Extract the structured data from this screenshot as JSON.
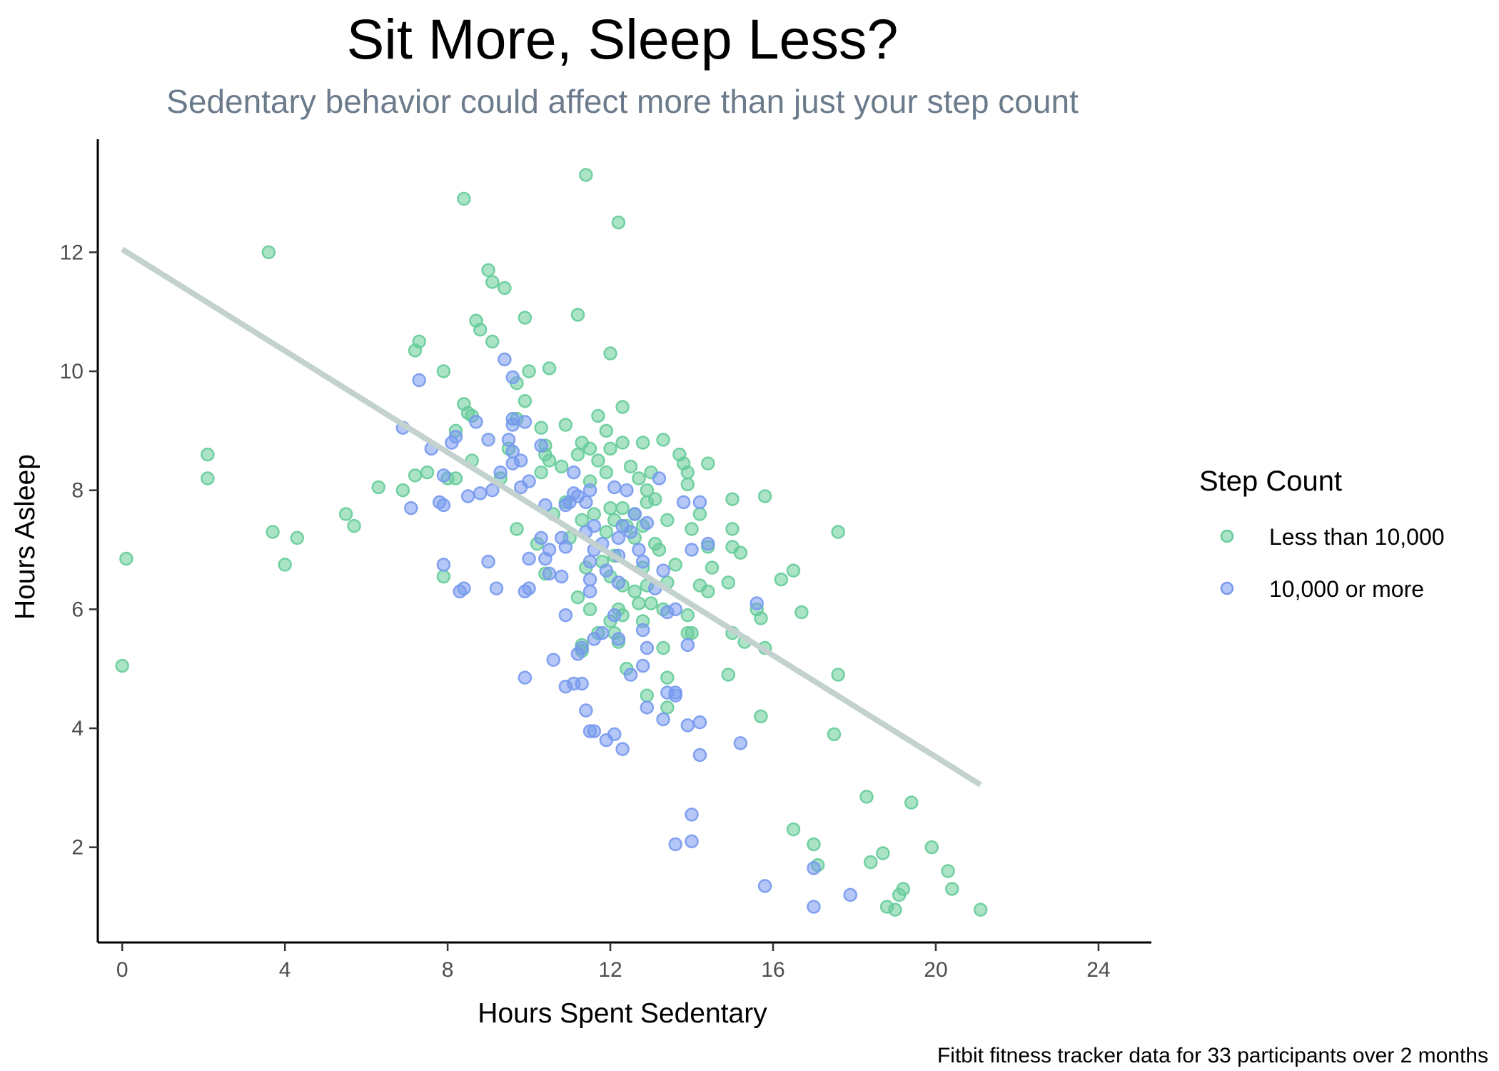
{
  "chart_data": {
    "type": "scatter",
    "title": "Sit More, Sleep Less?",
    "subtitle": "Sedentary behavior could affect more than just your step count",
    "xlabel": "Hours Spent Sedentary",
    "ylabel": "Hours Asleep",
    "caption": "Fitbit fitness tracker data for 33 participants over 2 months",
    "xlim": [
      -0.6,
      25.3
    ],
    "ylim": [
      0.4,
      13.9
    ],
    "x_ticks": [
      0,
      4,
      8,
      12,
      16,
      20,
      24
    ],
    "y_ticks": [
      2,
      4,
      6,
      8,
      10,
      12
    ],
    "x_tick_labels": [
      "0",
      "4",
      "8",
      "12",
      "16",
      "20",
      "24"
    ],
    "y_tick_labels": [
      "2",
      "4",
      "6",
      "8",
      "10",
      "12"
    ],
    "grid": false,
    "legend": {
      "title": "Step Count",
      "position": "right"
    },
    "trend_line": {
      "x": [
        0,
        21.1
      ],
      "y": [
        12.05,
        3.05
      ],
      "color": "#c3d1cf"
    },
    "series": [
      {
        "name": "Less than 10,000",
        "color": "#66cc99",
        "points": [
          [
            11.4,
            13.3
          ],
          [
            8.4,
            12.9
          ],
          [
            12.2,
            12.5
          ],
          [
            3.6,
            12.0
          ],
          [
            9.0,
            11.7
          ],
          [
            9.1,
            11.5
          ],
          [
            9.4,
            11.4
          ],
          [
            9.9,
            10.9
          ],
          [
            11.2,
            10.95
          ],
          [
            8.7,
            10.85
          ],
          [
            8.8,
            10.7
          ],
          [
            7.3,
            10.5
          ],
          [
            7.2,
            10.35
          ],
          [
            9.1,
            10.5
          ],
          [
            12.0,
            10.3
          ],
          [
            10.5,
            10.05
          ],
          [
            10.0,
            10.0
          ],
          [
            7.9,
            10.0
          ],
          [
            9.7,
            9.8
          ],
          [
            9.9,
            9.5
          ],
          [
            8.4,
            9.45
          ],
          [
            12.3,
            9.4
          ],
          [
            8.5,
            9.3
          ],
          [
            8.6,
            9.25
          ],
          [
            9.7,
            9.2
          ],
          [
            11.7,
            9.25
          ],
          [
            10.9,
            9.1
          ],
          [
            10.3,
            9.05
          ],
          [
            11.9,
            9.0
          ],
          [
            8.2,
            9.0
          ],
          [
            13.3,
            8.85
          ],
          [
            11.3,
            8.8
          ],
          [
            12.3,
            8.8
          ],
          [
            12.8,
            8.8
          ],
          [
            10.4,
            8.75
          ],
          [
            9.5,
            8.7
          ],
          [
            11.5,
            8.7
          ],
          [
            12.0,
            8.7
          ],
          [
            10.4,
            8.6
          ],
          [
            11.2,
            8.6
          ],
          [
            13.7,
            8.6
          ],
          [
            8.6,
            8.5
          ],
          [
            10.5,
            8.5
          ],
          [
            11.7,
            8.5
          ],
          [
            13.8,
            8.45
          ],
          [
            14.4,
            8.45
          ],
          [
            10.8,
            8.4
          ],
          [
            12.5,
            8.4
          ],
          [
            7.5,
            8.3
          ],
          [
            7.2,
            8.25
          ],
          [
            8.2,
            8.2
          ],
          [
            13.0,
            8.3
          ],
          [
            11.9,
            8.3
          ],
          [
            10.3,
            8.3
          ],
          [
            13.9,
            8.3
          ],
          [
            8.0,
            8.2
          ],
          [
            9.3,
            8.2
          ],
          [
            12.7,
            8.2
          ],
          [
            11.5,
            8.15
          ],
          [
            13.9,
            8.1
          ],
          [
            6.3,
            8.05
          ],
          [
            6.9,
            8.0
          ],
          [
            12.9,
            8.0
          ],
          [
            15.0,
            7.85
          ],
          [
            15.8,
            7.9
          ],
          [
            10.9,
            7.8
          ],
          [
            12.9,
            7.8
          ],
          [
            12.0,
            7.7
          ],
          [
            12.3,
            7.7
          ],
          [
            13.1,
            7.85
          ],
          [
            11.6,
            7.6
          ],
          [
            5.5,
            7.6
          ],
          [
            10.6,
            7.6
          ],
          [
            12.6,
            7.6
          ],
          [
            14.2,
            7.6
          ],
          [
            11.3,
            7.5
          ],
          [
            12.1,
            7.5
          ],
          [
            13.4,
            7.5
          ],
          [
            12.8,
            7.4
          ],
          [
            5.7,
            7.4
          ],
          [
            9.7,
            7.35
          ],
          [
            12.4,
            7.4
          ],
          [
            14.0,
            7.35
          ],
          [
            11.9,
            7.3
          ],
          [
            15.0,
            7.35
          ],
          [
            17.6,
            7.3
          ],
          [
            3.7,
            7.3
          ],
          [
            4.3,
            7.2
          ],
          [
            11.0,
            7.2
          ],
          [
            12.6,
            7.2
          ],
          [
            10.2,
            7.1
          ],
          [
            13.1,
            7.1
          ],
          [
            14.4,
            7.05
          ],
          [
            15.0,
            7.05
          ],
          [
            13.2,
            7.0
          ],
          [
            12.1,
            6.9
          ],
          [
            15.2,
            6.95
          ],
          [
            13.6,
            6.75
          ],
          [
            12.8,
            6.7
          ],
          [
            11.8,
            6.8
          ],
          [
            4.0,
            6.75
          ],
          [
            0.1,
            6.85
          ],
          [
            14.5,
            6.7
          ],
          [
            11.4,
            6.7
          ],
          [
            16.5,
            6.65
          ],
          [
            16.2,
            6.5
          ],
          [
            10.4,
            6.6
          ],
          [
            12.0,
            6.55
          ],
          [
            12.9,
            6.4
          ],
          [
            13.4,
            6.45
          ],
          [
            14.2,
            6.4
          ],
          [
            14.9,
            6.45
          ],
          [
            7.9,
            6.55
          ],
          [
            12.3,
            6.4
          ],
          [
            12.6,
            6.3
          ],
          [
            11.2,
            6.2
          ],
          [
            14.4,
            6.3
          ],
          [
            12.7,
            6.1
          ],
          [
            13.0,
            6.1
          ],
          [
            12.2,
            6.0
          ],
          [
            11.5,
            6.0
          ],
          [
            15.6,
            6.0
          ],
          [
            16.7,
            5.95
          ],
          [
            13.3,
            6.0
          ],
          [
            13.9,
            5.9
          ],
          [
            12.0,
            5.8
          ],
          [
            12.3,
            5.9
          ],
          [
            12.8,
            5.8
          ],
          [
            15.7,
            5.85
          ],
          [
            11.7,
            5.6
          ],
          [
            12.1,
            5.6
          ],
          [
            13.9,
            5.6
          ],
          [
            15.0,
            5.6
          ],
          [
            12.2,
            5.45
          ],
          [
            11.3,
            5.4
          ],
          [
            15.3,
            5.45
          ],
          [
            15.8,
            5.35
          ],
          [
            13.3,
            5.35
          ],
          [
            14.0,
            5.6
          ],
          [
            11.3,
            5.3
          ],
          [
            12.4,
            5.0
          ],
          [
            13.4,
            4.85
          ],
          [
            14.9,
            4.9
          ],
          [
            17.6,
            4.9
          ],
          [
            12.9,
            4.55
          ],
          [
            13.4,
            4.35
          ],
          [
            15.7,
            4.2
          ],
          [
            17.5,
            3.9
          ],
          [
            18.3,
            2.85
          ],
          [
            19.4,
            2.75
          ],
          [
            16.5,
            2.3
          ],
          [
            17.0,
            2.05
          ],
          [
            19.9,
            2.0
          ],
          [
            18.7,
            1.9
          ],
          [
            18.4,
            1.75
          ],
          [
            17.1,
            1.7
          ],
          [
            20.3,
            1.6
          ],
          [
            19.2,
            1.3
          ],
          [
            20.4,
            1.3
          ],
          [
            19.1,
            1.2
          ],
          [
            18.8,
            1.0
          ],
          [
            19.0,
            0.95
          ],
          [
            21.1,
            0.95
          ],
          [
            0.0,
            5.05
          ],
          [
            2.1,
            8.6
          ],
          [
            2.1,
            8.2
          ]
        ]
      },
      {
        "name": "10,000 or more",
        "color": "#7799ee",
        "points": [
          [
            9.4,
            10.2
          ],
          [
            7.3,
            9.85
          ],
          [
            9.6,
            9.9
          ],
          [
            9.6,
            9.2
          ],
          [
            9.9,
            9.15
          ],
          [
            9.6,
            9.1
          ],
          [
            6.9,
            9.05
          ],
          [
            8.2,
            8.9
          ],
          [
            8.1,
            8.8
          ],
          [
            9.0,
            8.85
          ],
          [
            8.7,
            9.15
          ],
          [
            9.5,
            8.85
          ],
          [
            7.6,
            8.7
          ],
          [
            9.6,
            8.65
          ],
          [
            10.3,
            8.75
          ],
          [
            9.8,
            8.5
          ],
          [
            9.6,
            8.45
          ],
          [
            11.1,
            8.3
          ],
          [
            9.3,
            8.3
          ],
          [
            7.9,
            8.25
          ],
          [
            10.0,
            8.15
          ],
          [
            11.5,
            8.0
          ],
          [
            12.4,
            8.0
          ],
          [
            12.1,
            8.05
          ],
          [
            13.2,
            8.2
          ],
          [
            9.8,
            8.05
          ],
          [
            9.1,
            8.0
          ],
          [
            8.8,
            7.95
          ],
          [
            11.1,
            7.95
          ],
          [
            11.2,
            7.9
          ],
          [
            11.0,
            7.8
          ],
          [
            11.4,
            7.8
          ],
          [
            10.9,
            7.75
          ],
          [
            10.4,
            7.75
          ],
          [
            7.8,
            7.8
          ],
          [
            7.9,
            7.75
          ],
          [
            7.1,
            7.7
          ],
          [
            8.5,
            7.9
          ],
          [
            13.8,
            7.8
          ],
          [
            14.2,
            7.8
          ],
          [
            12.6,
            7.6
          ],
          [
            12.9,
            7.45
          ],
          [
            11.6,
            7.4
          ],
          [
            12.3,
            7.4
          ],
          [
            11.4,
            7.3
          ],
          [
            12.5,
            7.3
          ],
          [
            12.2,
            7.2
          ],
          [
            10.8,
            7.2
          ],
          [
            10.3,
            7.2
          ],
          [
            10.9,
            7.05
          ],
          [
            11.8,
            7.1
          ],
          [
            14.4,
            7.1
          ],
          [
            14.0,
            7.0
          ],
          [
            11.6,
            7.0
          ],
          [
            12.7,
            7.0
          ],
          [
            10.5,
            7.0
          ],
          [
            12.2,
            6.9
          ],
          [
            10.4,
            6.85
          ],
          [
            11.5,
            6.8
          ],
          [
            10.0,
            6.85
          ],
          [
            9.0,
            6.8
          ],
          [
            12.8,
            6.8
          ],
          [
            13.3,
            6.65
          ],
          [
            10.5,
            6.6
          ],
          [
            7.9,
            6.75
          ],
          [
            11.9,
            6.65
          ],
          [
            11.5,
            6.5
          ],
          [
            10.8,
            6.55
          ],
          [
            12.2,
            6.45
          ],
          [
            13.1,
            6.35
          ],
          [
            8.3,
            6.3
          ],
          [
            8.4,
            6.35
          ],
          [
            9.2,
            6.35
          ],
          [
            9.9,
            6.3
          ],
          [
            10.0,
            6.35
          ],
          [
            11.5,
            6.3
          ],
          [
            15.6,
            6.1
          ],
          [
            13.4,
            5.95
          ],
          [
            13.6,
            6.0
          ],
          [
            10.9,
            5.9
          ],
          [
            12.1,
            5.9
          ],
          [
            12.8,
            5.65
          ],
          [
            11.8,
            5.6
          ],
          [
            12.2,
            5.5
          ],
          [
            11.6,
            5.5
          ],
          [
            12.9,
            5.35
          ],
          [
            13.9,
            5.4
          ],
          [
            11.3,
            5.35
          ],
          [
            10.6,
            5.15
          ],
          [
            11.2,
            5.25
          ],
          [
            12.5,
            4.9
          ],
          [
            12.8,
            5.05
          ],
          [
            10.9,
            4.7
          ],
          [
            11.1,
            4.75
          ],
          [
            11.3,
            4.75
          ],
          [
            9.9,
            4.85
          ],
          [
            13.6,
            4.6
          ],
          [
            13.4,
            4.6
          ],
          [
            13.6,
            4.55
          ],
          [
            11.4,
            4.3
          ],
          [
            12.9,
            4.35
          ],
          [
            13.3,
            4.15
          ],
          [
            14.2,
            4.1
          ],
          [
            13.9,
            4.05
          ],
          [
            11.5,
            3.95
          ],
          [
            11.9,
            3.8
          ],
          [
            12.1,
            3.9
          ],
          [
            11.6,
            3.95
          ],
          [
            12.3,
            3.65
          ],
          [
            15.2,
            3.75
          ],
          [
            14.2,
            3.55
          ],
          [
            14.0,
            2.55
          ],
          [
            14.0,
            2.1
          ],
          [
            13.6,
            2.05
          ],
          [
            17.0,
            1.65
          ],
          [
            15.8,
            1.35
          ],
          [
            17.9,
            1.2
          ],
          [
            17.0,
            1.0
          ]
        ]
      }
    ]
  }
}
